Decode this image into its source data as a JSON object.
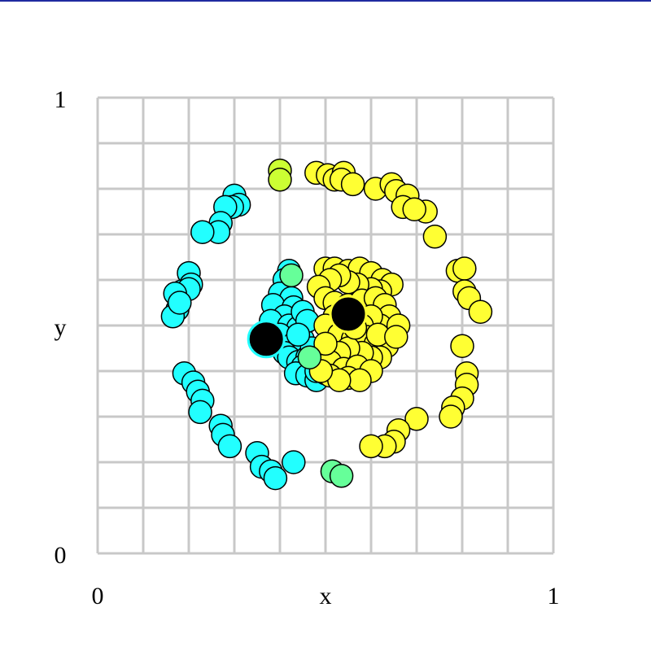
{
  "chart_data": {
    "type": "scatter",
    "title": "",
    "xlabel": "x",
    "ylabel": "y",
    "xlim": [
      0,
      1
    ],
    "ylim": [
      0,
      1
    ],
    "x_tick_labels": [
      {
        "value": 0,
        "label": "0"
      },
      {
        "value": 1,
        "label": "1"
      }
    ],
    "y_tick_labels": [
      {
        "value": 0,
        "label": "0"
      },
      {
        "value": 1,
        "label": "1"
      }
    ],
    "grid": true,
    "grid_step": 0.1,
    "grid_color": "#c8c8c8",
    "colors": {
      "cyan": "#22ffff",
      "yellow": "#ffff33",
      "green": "#66ff99",
      "lime": "#ccff33",
      "centroid": "#000000",
      "marker_edge": "#000000"
    },
    "series": [
      {
        "color_key": "cyan",
        "points": [
          [
            0.3,
            0.785
          ],
          [
            0.31,
            0.765
          ],
          [
            0.295,
            0.76
          ],
          [
            0.28,
            0.76
          ],
          [
            0.27,
            0.725
          ],
          [
            0.265,
            0.705
          ],
          [
            0.23,
            0.705
          ],
          [
            0.2,
            0.615
          ],
          [
            0.205,
            0.59
          ],
          [
            0.185,
            0.575
          ],
          [
            0.2,
            0.58
          ],
          [
            0.17,
            0.57
          ],
          [
            0.175,
            0.535
          ],
          [
            0.165,
            0.52
          ],
          [
            0.18,
            0.55
          ],
          [
            0.19,
            0.395
          ],
          [
            0.21,
            0.375
          ],
          [
            0.22,
            0.355
          ],
          [
            0.23,
            0.335
          ],
          [
            0.225,
            0.31
          ],
          [
            0.27,
            0.28
          ],
          [
            0.275,
            0.26
          ],
          [
            0.29,
            0.235
          ],
          [
            0.35,
            0.22
          ],
          [
            0.36,
            0.19
          ],
          [
            0.38,
            0.18
          ],
          [
            0.39,
            0.165
          ],
          [
            0.43,
            0.2
          ],
          [
            0.42,
            0.62
          ],
          [
            0.41,
            0.6
          ],
          [
            0.4,
            0.57
          ],
          [
            0.425,
            0.56
          ],
          [
            0.385,
            0.545
          ],
          [
            0.43,
            0.54
          ],
          [
            0.41,
            0.52
          ],
          [
            0.38,
            0.51
          ],
          [
            0.42,
            0.5
          ],
          [
            0.44,
            0.495
          ],
          [
            0.45,
            0.47
          ],
          [
            0.4,
            0.48
          ],
          [
            0.43,
            0.46
          ],
          [
            0.41,
            0.44
          ],
          [
            0.42,
            0.43
          ],
          [
            0.44,
            0.42
          ],
          [
            0.46,
            0.43
          ],
          [
            0.45,
            0.41
          ],
          [
            0.47,
            0.405
          ],
          [
            0.435,
            0.395
          ],
          [
            0.46,
            0.39
          ],
          [
            0.48,
            0.38
          ],
          [
            0.5,
            0.395
          ],
          [
            0.49,
            0.42
          ],
          [
            0.47,
            0.45
          ],
          [
            0.5,
            0.44
          ],
          [
            0.45,
            0.53
          ],
          [
            0.46,
            0.51
          ],
          [
            0.44,
            0.48
          ],
          [
            0.48,
            0.4
          ]
        ]
      },
      {
        "color_key": "yellow",
        "points": [
          [
            0.48,
            0.835
          ],
          [
            0.505,
            0.83
          ],
          [
            0.52,
            0.82
          ],
          [
            0.54,
            0.835
          ],
          [
            0.535,
            0.82
          ],
          [
            0.56,
            0.81
          ],
          [
            0.61,
            0.8
          ],
          [
            0.645,
            0.81
          ],
          [
            0.655,
            0.795
          ],
          [
            0.68,
            0.785
          ],
          [
            0.67,
            0.76
          ],
          [
            0.72,
            0.75
          ],
          [
            0.695,
            0.755
          ],
          [
            0.74,
            0.695
          ],
          [
            0.79,
            0.62
          ],
          [
            0.805,
            0.625
          ],
          [
            0.805,
            0.575
          ],
          [
            0.815,
            0.56
          ],
          [
            0.84,
            0.53
          ],
          [
            0.8,
            0.455
          ],
          [
            0.81,
            0.395
          ],
          [
            0.81,
            0.37
          ],
          [
            0.8,
            0.34
          ],
          [
            0.78,
            0.32
          ],
          [
            0.775,
            0.3
          ],
          [
            0.7,
            0.295
          ],
          [
            0.66,
            0.27
          ],
          [
            0.65,
            0.245
          ],
          [
            0.63,
            0.235
          ],
          [
            0.6,
            0.235
          ],
          [
            0.5,
            0.625
          ],
          [
            0.52,
            0.625
          ],
          [
            0.55,
            0.62
          ],
          [
            0.575,
            0.625
          ],
          [
            0.6,
            0.615
          ],
          [
            0.625,
            0.6
          ],
          [
            0.645,
            0.59
          ],
          [
            0.62,
            0.575
          ],
          [
            0.6,
            0.58
          ],
          [
            0.57,
            0.59
          ],
          [
            0.55,
            0.595
          ],
          [
            0.53,
            0.61
          ],
          [
            0.51,
            0.6
          ],
          [
            0.485,
            0.585
          ],
          [
            0.5,
            0.56
          ],
          [
            0.52,
            0.55
          ],
          [
            0.55,
            0.545
          ],
          [
            0.58,
            0.555
          ],
          [
            0.61,
            0.56
          ],
          [
            0.63,
            0.545
          ],
          [
            0.64,
            0.52
          ],
          [
            0.62,
            0.5
          ],
          [
            0.6,
            0.52
          ],
          [
            0.58,
            0.5
          ],
          [
            0.55,
            0.51
          ],
          [
            0.52,
            0.52
          ],
          [
            0.5,
            0.5
          ],
          [
            0.53,
            0.48
          ],
          [
            0.56,
            0.47
          ],
          [
            0.59,
            0.475
          ],
          [
            0.61,
            0.46
          ],
          [
            0.635,
            0.455
          ],
          [
            0.62,
            0.43
          ],
          [
            0.6,
            0.43
          ],
          [
            0.58,
            0.44
          ],
          [
            0.55,
            0.45
          ],
          [
            0.53,
            0.44
          ],
          [
            0.51,
            0.42
          ],
          [
            0.54,
            0.405
          ],
          [
            0.57,
            0.41
          ],
          [
            0.6,
            0.4
          ],
          [
            0.55,
            0.385
          ],
          [
            0.51,
            0.39
          ],
          [
            0.575,
            0.38
          ],
          [
            0.53,
            0.38
          ],
          [
            0.49,
            0.4
          ],
          [
            0.5,
            0.46
          ],
          [
            0.66,
            0.5
          ],
          [
            0.615,
            0.48
          ],
          [
            0.655,
            0.475
          ],
          [
            0.54,
            0.53
          ],
          [
            0.565,
            0.495
          ]
        ]
      },
      {
        "color_key": "green",
        "points": [
          [
            0.425,
            0.61
          ],
          [
            0.515,
            0.18
          ],
          [
            0.535,
            0.17
          ],
          [
            0.465,
            0.43
          ]
        ]
      },
      {
        "color_key": "lime",
        "points": [
          [
            0.4,
            0.84
          ],
          [
            0.4,
            0.82
          ]
        ]
      }
    ],
    "centroids": [
      {
        "x": 0.37,
        "y": 0.47,
        "edge_key": "cyan"
      },
      {
        "x": 0.55,
        "y": 0.525,
        "edge_key": "yellow"
      }
    ]
  }
}
